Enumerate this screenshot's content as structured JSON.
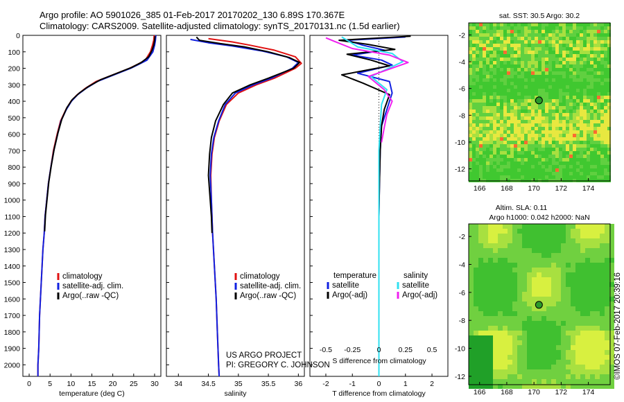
{
  "title_line1": "Argo profile: AO 5901026_385 01-Feb-2017 20170202_130 6.89S 170.367E",
  "title_line2": "Climatology: CARS2009. Satellite-adjusted climatology: synTS_20170131.nc (1.5d earlier)",
  "footer_credit_1": "US ARGO PROJECT",
  "footer_credit_2": "PI: GREGORY C. JOHNSON",
  "timestamp": "©IMOS 07-Feb-2017 20:39:16",
  "colors": {
    "climatology": "#e01010",
    "satellite": "#1020e0",
    "argo": "#000000",
    "sat_salinity": "#30e0f0",
    "argo_salinity_adj": "#f020f0",
    "float_marker": "#2a9a2a"
  },
  "chart_data": [
    {
      "id": "temperature",
      "type": "line",
      "xlabel": "temperature (deg C)",
      "xlim": [
        -1.5,
        31.5
      ],
      "xticks": [
        0,
        5,
        10,
        15,
        20,
        25,
        30
      ],
      "ylim": [
        0,
        2070
      ],
      "yticks": [
        0,
        100,
        200,
        300,
        400,
        500,
        600,
        700,
        800,
        900,
        1000,
        1100,
        1200,
        1300,
        1400,
        1500,
        1600,
        1700,
        1800,
        1900,
        2000
      ],
      "legend": [
        "climatology",
        "satellite-adj. clim.",
        "Argo(..raw -QC)"
      ],
      "series": [
        {
          "name": "climatology",
          "color": "#e01010",
          "points": [
            [
              29.9,
              0
            ],
            [
              29.8,
              30
            ],
            [
              29.5,
              60
            ],
            [
              29.0,
              100
            ],
            [
              27.8,
              150
            ],
            [
              26.0,
              175
            ],
            [
              24.0,
              200
            ],
            [
              20.0,
              240
            ],
            [
              16.0,
              280
            ],
            [
              13.5,
              320
            ],
            [
              11.5,
              360
            ],
            [
              10.0,
              400
            ],
            [
              8.8,
              450
            ],
            [
              7.5,
              520
            ],
            [
              6.7,
              600
            ],
            [
              5.8,
              700
            ],
            [
              5.2,
              800
            ],
            [
              4.6,
              900
            ],
            [
              4.2,
              1000
            ],
            [
              3.8,
              1100
            ],
            [
              3.6,
              1200
            ],
            [
              3.3,
              1300
            ],
            [
              3.1,
              1400
            ],
            [
              2.9,
              1500
            ],
            [
              2.7,
              1600
            ],
            [
              2.5,
              1700
            ],
            [
              2.4,
              1800
            ],
            [
              2.3,
              1900
            ],
            [
              2.1,
              2000
            ],
            [
              2.1,
              2070
            ]
          ]
        },
        {
          "name": "satellite-adj. clim.",
          "color": "#1020e0",
          "points": [
            [
              30.3,
              0
            ],
            [
              30.2,
              30
            ],
            [
              30.0,
              60
            ],
            [
              29.6,
              100
            ],
            [
              28.2,
              150
            ],
            [
              26.3,
              175
            ],
            [
              24.3,
              200
            ],
            [
              20.3,
              240
            ],
            [
              16.3,
              280
            ],
            [
              13.7,
              320
            ],
            [
              11.6,
              360
            ],
            [
              10.1,
              400
            ],
            [
              8.9,
              450
            ],
            [
              7.6,
              520
            ],
            [
              6.8,
              600
            ],
            [
              5.9,
              700
            ],
            [
              5.2,
              800
            ],
            [
              4.6,
              900
            ],
            [
              4.2,
              1000
            ],
            [
              3.8,
              1100
            ],
            [
              3.6,
              1200
            ],
            [
              3.3,
              1300
            ],
            [
              3.1,
              1400
            ],
            [
              2.9,
              1500
            ],
            [
              2.7,
              1600
            ],
            [
              2.5,
              1700
            ],
            [
              2.4,
              1800
            ],
            [
              2.3,
              1900
            ],
            [
              2.1,
              2000
            ],
            [
              2.1,
              2070
            ]
          ]
        },
        {
          "name": "Argo(..raw -QC)",
          "color": "#000000",
          "points": [
            [
              30.1,
              5
            ],
            [
              30.0,
              30
            ],
            [
              29.8,
              60
            ],
            [
              29.4,
              90
            ],
            [
              28.6,
              130
            ],
            [
              26.8,
              165
            ],
            [
              24.5,
              195
            ],
            [
              21.0,
              230
            ],
            [
              17.0,
              270
            ],
            [
              14.2,
              310
            ],
            [
              12.0,
              350
            ],
            [
              10.3,
              390
            ],
            [
              9.0,
              440
            ],
            [
              7.8,
              510
            ],
            [
              6.9,
              590
            ],
            [
              6.0,
              690
            ],
            [
              5.3,
              790
            ],
            [
              4.7,
              890
            ],
            [
              4.3,
              990
            ],
            [
              3.9,
              1090
            ],
            [
              3.7,
              1190
            ]
          ]
        }
      ]
    },
    {
      "id": "salinity",
      "type": "line",
      "xlabel": "salinity",
      "xlim": [
        33.8,
        36.1
      ],
      "xticks": [
        34,
        34.5,
        35,
        35.5,
        36
      ],
      "ylim": [
        0,
        2070
      ],
      "legend": [
        "climatology",
        "satellite-adj. clim.",
        "Argo(..raw -QC)"
      ],
      "series": [
        {
          "name": "climatology",
          "color": "#e01010",
          "points": [
            [
              34.5,
              20
            ],
            [
              34.9,
              40
            ],
            [
              35.2,
              60
            ],
            [
              35.6,
              90
            ],
            [
              35.95,
              130
            ],
            [
              36.05,
              170
            ],
            [
              35.95,
              200
            ],
            [
              35.6,
              260
            ],
            [
              35.3,
              300
            ],
            [
              35.0,
              350
            ],
            [
              34.8,
              420
            ],
            [
              34.68,
              520
            ],
            [
              34.6,
              620
            ],
            [
              34.56,
              720
            ],
            [
              34.54,
              850
            ],
            [
              34.55,
              1000
            ],
            [
              34.57,
              1200
            ],
            [
              34.6,
              1400
            ],
            [
              34.63,
              1600
            ],
            [
              34.65,
              1800
            ],
            [
              34.67,
              2000
            ],
            [
              34.68,
              2070
            ]
          ]
        },
        {
          "name": "satellite-adj. clim.",
          "color": "#1020e0",
          "points": [
            [
              34.2,
              25
            ],
            [
              34.5,
              45
            ],
            [
              34.9,
              65
            ],
            [
              35.4,
              95
            ],
            [
              35.8,
              130
            ],
            [
              36.0,
              165
            ],
            [
              35.9,
              200
            ],
            [
              35.55,
              260
            ],
            [
              35.25,
              300
            ],
            [
              34.95,
              350
            ],
            [
              34.78,
              420
            ],
            [
              34.67,
              520
            ],
            [
              34.59,
              620
            ],
            [
              34.55,
              720
            ],
            [
              34.53,
              850
            ],
            [
              34.55,
              1000
            ],
            [
              34.57,
              1200
            ],
            [
              34.6,
              1400
            ],
            [
              34.63,
              1600
            ],
            [
              34.65,
              1800
            ],
            [
              34.67,
              2000
            ],
            [
              34.68,
              2070
            ]
          ]
        },
        {
          "name": "Argo(..raw -QC)",
          "color": "#000000",
          "points": [
            [
              34.3,
              10
            ],
            [
              34.35,
              30
            ],
            [
              34.7,
              50
            ],
            [
              35.1,
              70
            ],
            [
              35.5,
              100
            ],
            [
              35.85,
              135
            ],
            [
              36.02,
              165
            ],
            [
              35.92,
              200
            ],
            [
              35.5,
              260
            ],
            [
              35.2,
              300
            ],
            [
              34.9,
              350
            ],
            [
              34.75,
              420
            ],
            [
              34.62,
              520
            ],
            [
              34.55,
              620
            ],
            [
              34.52,
              720
            ],
            [
              34.5,
              850
            ],
            [
              34.53,
              1000
            ],
            [
              34.55,
              1100
            ],
            [
              34.56,
              1200
            ]
          ]
        }
      ]
    },
    {
      "id": "differences",
      "type": "line",
      "xlabel": "T difference from climatology",
      "xlabel_top": "S difference from climatology",
      "xlim": [
        -2.6,
        2.6
      ],
      "xticks": [
        -2,
        -1,
        0,
        1,
        2
      ],
      "xticks_salinity": [
        -0.5,
        -0.25,
        0,
        0.25,
        0.5
      ],
      "ylim": [
        0,
        2070
      ],
      "legend_temperature_title": "temperature",
      "legend_salinity_title": "salinity",
      "legend_temperature": [
        "satellite",
        "Argo(-adj)"
      ],
      "legend_salinity": [
        "satellite",
        "Argo(-adj)"
      ],
      "series": [
        {
          "name": "T satellite",
          "color": "#1020e0",
          "points": [
            [
              1.0,
              10
            ],
            [
              -1.2,
              30
            ],
            [
              -0.6,
              60
            ],
            [
              0.2,
              90
            ],
            [
              -1.0,
              120
            ],
            [
              0.1,
              150
            ],
            [
              0.5,
              180
            ],
            [
              -0.8,
              230
            ],
            [
              0.4,
              280
            ],
            [
              0.5,
              350
            ],
            [
              0.3,
              450
            ],
            [
              0.1,
              550
            ],
            [
              0.05,
              700
            ],
            [
              0.02,
              900
            ],
            [
              0.0,
              1100
            ],
            [
              0.0,
              1400
            ],
            [
              0.0,
              1700
            ],
            [
              0.0,
              2000
            ],
            [
              0.0,
              2070
            ]
          ]
        },
        {
          "name": "T Argo(-adj)",
          "color": "#000000",
          "points": [
            [
              1.2,
              5
            ],
            [
              -1.5,
              30
            ],
            [
              -0.4,
              55
            ],
            [
              0.6,
              85
            ],
            [
              -1.2,
              115
            ],
            [
              -0.3,
              150
            ],
            [
              0.4,
              185
            ],
            [
              -1.4,
              240
            ],
            [
              -0.6,
              290
            ],
            [
              0.4,
              360
            ],
            [
              0.2,
              450
            ],
            [
              0.1,
              550
            ],
            [
              0.05,
              700
            ],
            [
              0.02,
              900
            ],
            [
              0.0,
              1100
            ],
            [
              0.0,
              1200
            ]
          ]
        },
        {
          "name": "S satellite",
          "color": "#30e0f0",
          "points": [
            [
              -1.4,
              10
            ],
            [
              -1.2,
              30
            ],
            [
              -0.8,
              70
            ],
            [
              0.5,
              110
            ],
            [
              0.9,
              160
            ],
            [
              -0.3,
              250
            ],
            [
              0.3,
              330
            ],
            [
              0.1,
              420
            ],
            [
              0.05,
              550
            ],
            [
              0.0,
              700
            ],
            [
              0.0,
              900
            ],
            [
              0.0,
              1200
            ],
            [
              0.0,
              1500
            ],
            [
              0.0,
              1800
            ],
            [
              0.0,
              2070
            ]
          ]
        },
        {
          "name": "S Argo(-adj)",
          "color": "#f020f0",
          "points": [
            [
              -2.0,
              15
            ],
            [
              -1.7,
              35
            ],
            [
              -1.0,
              80
            ],
            [
              0.4,
              120
            ],
            [
              1.1,
              165
            ],
            [
              -0.4,
              250
            ],
            [
              0.2,
              330
            ],
            [
              0.5,
              400
            ],
            [
              0.3,
              480
            ],
            [
              0.2,
              560
            ],
            [
              0.1,
              650
            ]
          ]
        }
      ]
    },
    {
      "id": "sst_map",
      "type": "heatmap",
      "title": "sat. SST: 30.5   Argo: 30.2",
      "xlim": [
        165.2,
        175.6
      ],
      "ylim": [
        -12.9,
        -1.1
      ],
      "xticks": [
        166,
        168,
        170,
        172,
        174
      ],
      "yticks": [
        -2,
        -4,
        -6,
        -8,
        -10,
        -12
      ],
      "float_position": [
        170.367,
        -6.89
      ]
    },
    {
      "id": "sla_map",
      "type": "heatmap",
      "title_line1": "Altim. SLA: 0.11",
      "title_line2": "Argo h1000: 0.042 h2000: NaN",
      "xlim": [
        165.2,
        175.6
      ],
      "ylim": [
        -12.6,
        -1.1
      ],
      "xticks": [
        166,
        168,
        170,
        172,
        174
      ],
      "yticks": [
        -2,
        -4,
        -6,
        -8,
        -10,
        -12
      ],
      "float_position": [
        170.367,
        -6.89
      ]
    }
  ]
}
